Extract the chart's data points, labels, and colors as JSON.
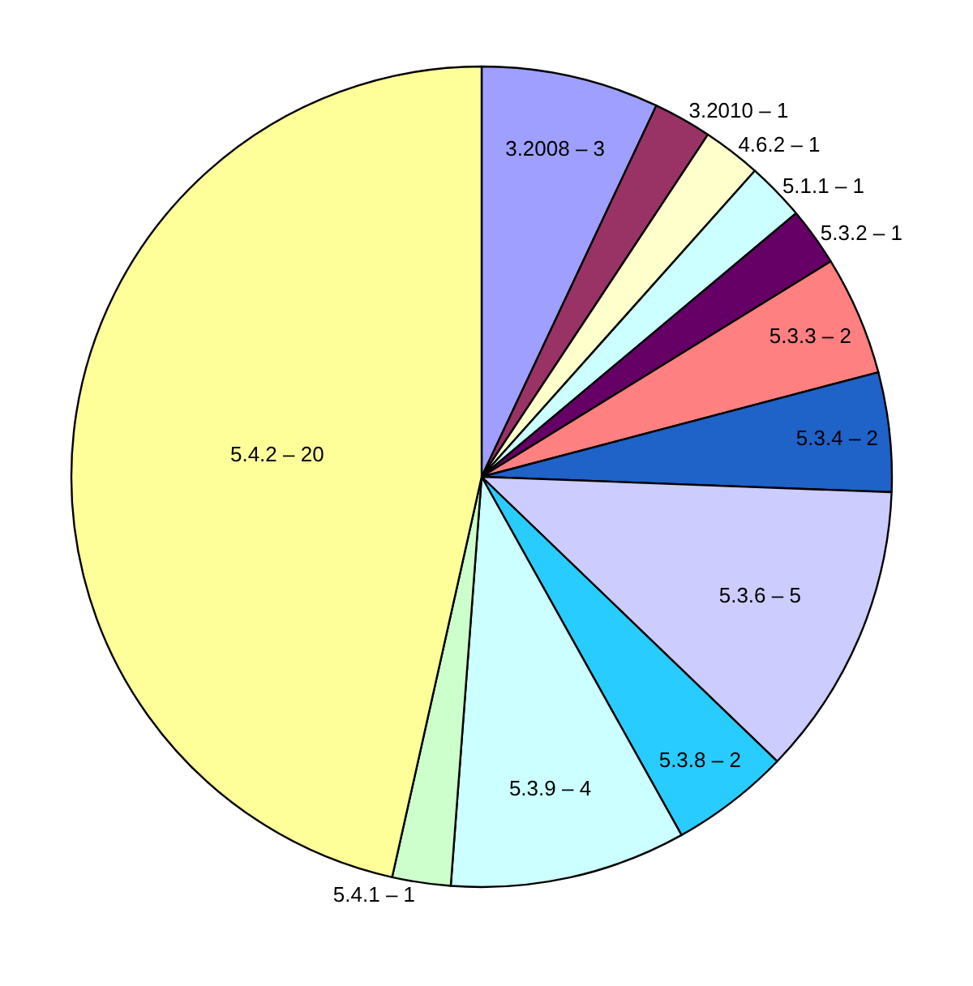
{
  "chart_data": {
    "type": "pie",
    "categories": [
      "3.2008 – 3",
      "3.2010 – 1",
      "4.6.2 – 1",
      "5.1.1 – 1",
      "5.3.2 – 1",
      "5.3.3 – 2",
      "5.3.4 – 2",
      "5.3.6 – 5",
      "5.3.8 – 2",
      "5.3.9 – 4",
      "5.4.1 – 1",
      "5.4.2 – 20"
    ],
    "values": [
      7.0,
      2.3,
      2.3,
      2.3,
      2.3,
      4.7,
      4.7,
      11.6,
      4.7,
      9.3,
      2.3,
      46.5
    ],
    "colors": [
      "#9f9fff",
      "#993366",
      "#ffffcc",
      "#ccffff",
      "#660066",
      "#ff8080",
      "#1f62c8",
      "#ccccff",
      "#29ccff",
      "#ccffff",
      "#ccffcc",
      "#ffff99"
    ],
    "legend": false
  }
}
